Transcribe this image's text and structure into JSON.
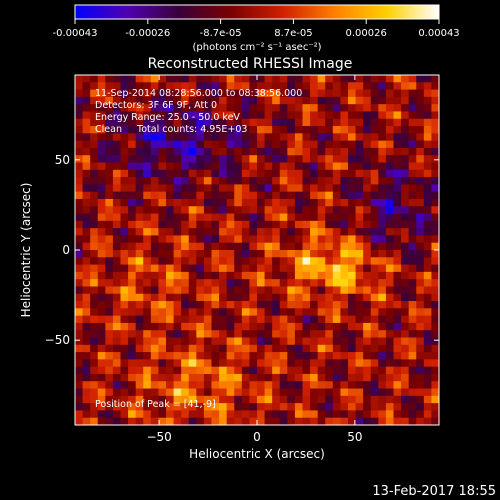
{
  "colorbar": {
    "ticks": [
      "-0.00043",
      "-0.00026",
      "-8.7e-05",
      "8.7e-05",
      "0.00026",
      "0.00043"
    ],
    "units_label": "(photons cm⁻² s⁻¹ asec⁻²)",
    "colors": [
      "#0000ff",
      "#5000b0",
      "#3a003a",
      "#7a0000",
      "#d02000",
      "#ff8000",
      "#ffd000",
      "#ffffff"
    ]
  },
  "chart_data": {
    "type": "heatmap",
    "title": "Reconstructed RHESSI Image",
    "xlabel": "Heliocentric X (arcsec)",
    "ylabel": "Heliocentric Y (arcsec)",
    "xlim": [
      -93,
      93
    ],
    "ylim": [
      -97,
      97
    ],
    "xticks": [
      -50,
      0,
      50
    ],
    "yticks": [
      50,
      0,
      -50
    ],
    "value_range": [
      -0.00043,
      0.00043
    ],
    "grid_cells": [
      48,
      48
    ],
    "annotations": [
      "11-Sep-2014 08:28:56.000 to 08:38:56.000",
      "Detectors: 3F 6F 9F, Att 0",
      "Energy Range: 25.0 - 50.0 keV",
      "Clean     Total counts: 4.95E+03"
    ],
    "peak_label": "Position of Peak = [41,-9]",
    "peak": [
      41,
      -9
    ]
  },
  "timestamp": "13-Feb-2017 18:55"
}
